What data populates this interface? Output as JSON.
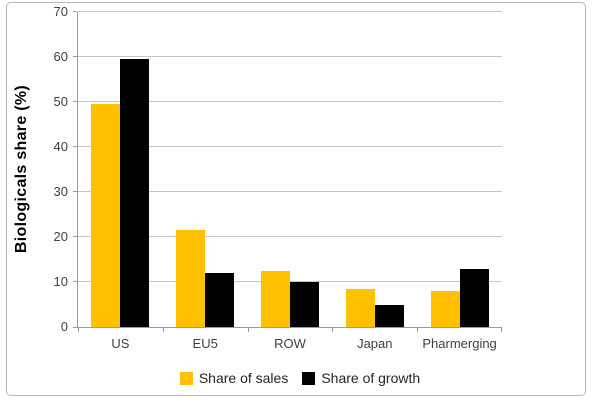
{
  "frame": {
    "background": "#ffffff",
    "border_color": "#b7b7b7"
  },
  "chart_data": {
    "type": "bar",
    "title": "",
    "categories": [
      "US",
      "EU5",
      "ROW",
      "Japan",
      "Pharmerging"
    ],
    "series": [
      {
        "name": "Share of sales",
        "color": "#FFC000",
        "values": [
          49.5,
          21.5,
          12.5,
          8.5,
          8
        ]
      },
      {
        "name": "Share of growth",
        "color": "#000000",
        "values": [
          59.5,
          12,
          10,
          5,
          13
        ]
      }
    ],
    "xlabel": "",
    "ylabel": "Biologicals share (%)",
    "ylim": [
      0,
      70
    ],
    "ytick_step": 10,
    "ytick_labels": [
      "0",
      "10",
      "20",
      "30",
      "40",
      "50",
      "60",
      "70"
    ],
    "grid": true,
    "gridline_color": "#c6c6c6",
    "axis_color": "#9b9b9b",
    "tick_label_color": "#3f3f3f",
    "legend_position": "bottom"
  }
}
